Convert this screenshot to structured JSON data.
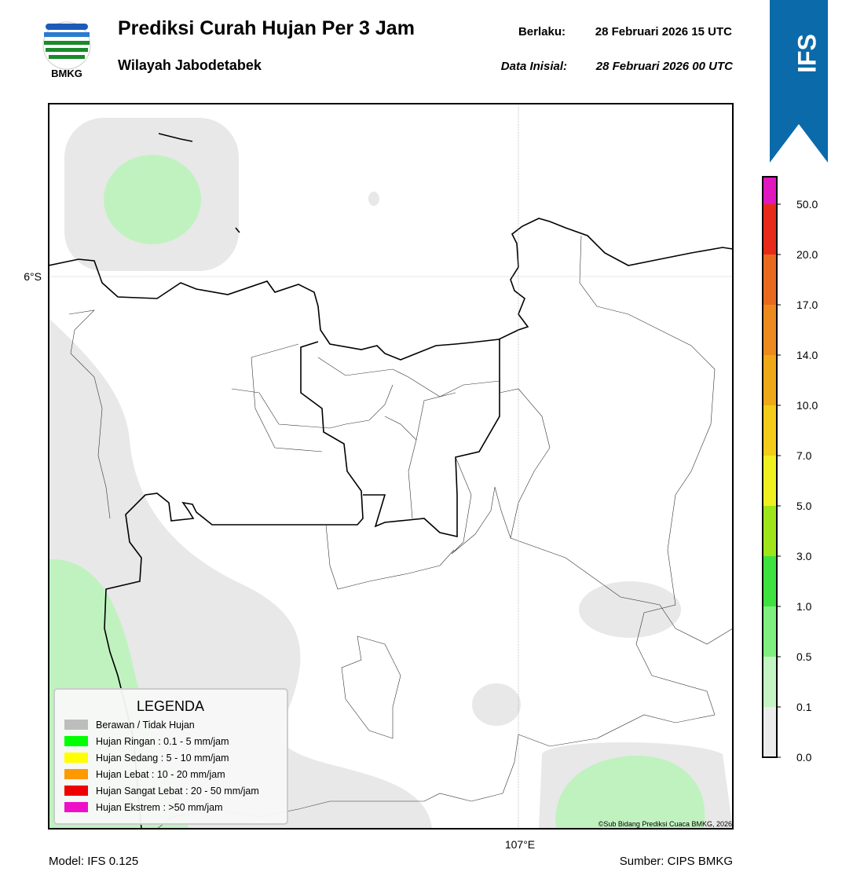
{
  "header": {
    "title": "Prediksi Curah Hujan Per 3 Jam",
    "subtitle": "Wilayah Jabodetabek",
    "logo_text": "BMKG",
    "valid_label": "Berlaku:",
    "valid_time": "28 Februari 2026 15 UTC",
    "init_label": "Data Inisial:",
    "init_time": "28 Februari 2026 00 UTC",
    "badge": "IFS"
  },
  "map": {
    "lat_label": "6°S",
    "lon_label": "107°E",
    "credit": "©Sub Bidang Prediksi Cuaca BMKG, 2026"
  },
  "legend": {
    "title": "LEGENDA",
    "items": [
      {
        "label": "Berawan / Tidak Hujan",
        "color": "#bdbdbd"
      },
      {
        "label": "Hujan Ringan : 0.1 - 5 mm/jam",
        "color": "#00ff00"
      },
      {
        "label": "Hujan Sedang : 5 - 10 mm/jam",
        "color": "#ffff00"
      },
      {
        "label": "Hujan Lebat : 10 - 20 mm/jam",
        "color": "#ff9900"
      },
      {
        "label": "Hujan Sangat Lebat : 20 - 50 mm/jam",
        "color": "#ee0000"
      },
      {
        "label": "Hujan Ekstrem : >50 mm/jam",
        "color": "#ee10c8"
      }
    ]
  },
  "colorbar": {
    "ticks": [
      {
        "value": 0,
        "label": "0.0"
      },
      {
        "value": 0.1,
        "label": "0.1"
      },
      {
        "value": 0.5,
        "label": "0.5"
      },
      {
        "value": 1,
        "label": "1.0"
      },
      {
        "value": 3,
        "label": "3.0"
      },
      {
        "value": 5,
        "label": "5.0"
      },
      {
        "value": 7,
        "label": "7.0"
      },
      {
        "value": 10,
        "label": "10.0"
      },
      {
        "value": 14,
        "label": "14.0"
      },
      {
        "value": 17,
        "label": "17.0"
      },
      {
        "value": 20,
        "label": "20.0"
      },
      {
        "value": 50,
        "label": "50.0"
      }
    ],
    "colors": [
      "#ececec",
      "#c4f4c4",
      "#7ff07f",
      "#3ee23e",
      "#9ee51a",
      "#f0f020",
      "#f2cc18",
      "#eea818",
      "#ec8a1e",
      "#e86a1e",
      "#e82a1a",
      "#e018c0"
    ]
  },
  "footer": {
    "model": "Model: IFS 0.125",
    "source": "Sumber: CIPS BMKG"
  }
}
